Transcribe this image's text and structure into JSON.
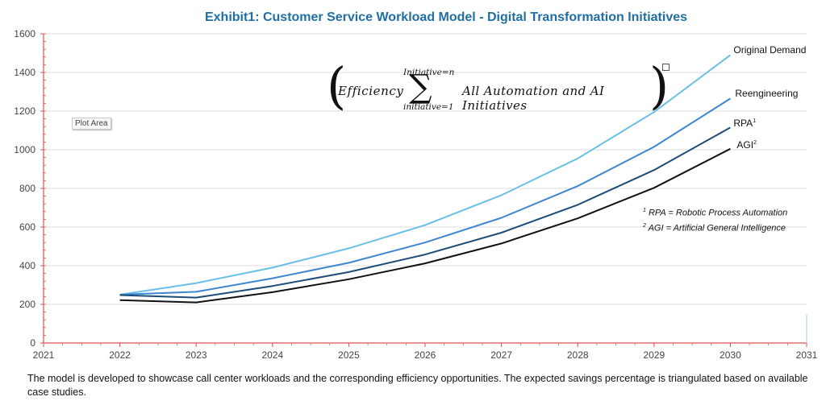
{
  "chart_data": {
    "type": "line",
    "title": "Exhibit1: Customer Service Workload Model - Digital Transformation Initiatives",
    "x": [
      2022,
      2023,
      2024,
      2025,
      2026,
      2027,
      2028,
      2029,
      2030
    ],
    "xlim": [
      2021,
      2031
    ],
    "x_ticks": [
      2021,
      2022,
      2023,
      2024,
      2025,
      2026,
      2027,
      2028,
      2029,
      2030,
      2031
    ],
    "ylim": [
      0,
      1600
    ],
    "y_ticks": [
      0,
      200,
      400,
      600,
      800,
      1000,
      1200,
      1400,
      1600
    ],
    "grid": true,
    "series": [
      {
        "name": "Original Demand",
        "sup": "",
        "color": "#69bfe8",
        "values": [
          250,
          310,
          390,
          490,
          610,
          765,
          955,
          1195,
          1490
        ]
      },
      {
        "name": "Reengineering",
        "sup": "",
        "color": "#3e86d0",
        "values": [
          250,
          265,
          335,
          415,
          520,
          648,
          812,
          1015,
          1265
        ]
      },
      {
        "name": "RPA",
        "sup": "1",
        "color": "#1c4d78",
        "values": [
          248,
          235,
          295,
          367,
          458,
          571,
          715,
          895,
          1115
        ]
      },
      {
        "name": "AGI",
        "sup": "2",
        "color": "#111111",
        "values": [
          222,
          210,
          263,
          330,
          412,
          515,
          645,
          803,
          1005
        ]
      }
    ]
  },
  "formula": {
    "lhs": "Efficiency",
    "upper": "Initiative=n",
    "lower": "initiative=1",
    "sigma": "∑",
    "rhs": "All Automation and AI Initiatives",
    "left_paren": "(",
    "right_paren": ")"
  },
  "footnotes": [
    {
      "marker": "1",
      "text": "RPA = Robotic Process Automation"
    },
    {
      "marker": "2",
      "text": "AGI = Artificial General Intelligence"
    }
  ],
  "plot_area_tag": "Plot Area",
  "caption": "The model is developed to showcase call center workloads and the corresponding efficiency opportunities.  The expected savings percentage is triangulated based on available case studies."
}
